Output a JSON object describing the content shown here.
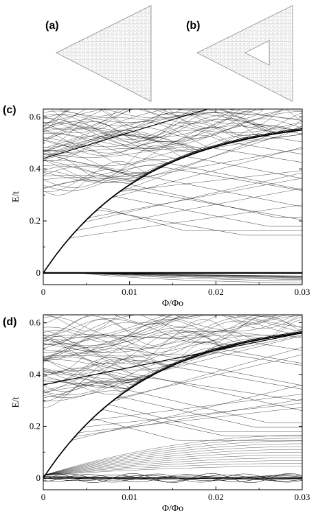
{
  "figure": {
    "panel_labels": {
      "a": "(a)",
      "b": "(b)",
      "c": "(c)",
      "d": "(d)"
    }
  },
  "chart_data": [
    {
      "panel": "(c)",
      "type": "line",
      "xlabel": "Φ/Φo",
      "ylabel": "E/t",
      "xlim": [
        0,
        0.03
      ],
      "ylim": [
        -0.045,
        0.63
      ],
      "x_ticks": [
        0,
        0.01,
        0.02,
        0.03
      ],
      "x_tick_labels": [
        "0",
        "0.01",
        "0.02",
        "0.03"
      ],
      "y_ticks": [
        0,
        0.2,
        0.4,
        0.6
      ],
      "y_tick_labels": [
        "0",
        "0.2",
        "0.4",
        "0.6"
      ],
      "grid": false,
      "zero_mode": "degenerate flat band at E = 0",
      "series_color": "#000000"
    },
    {
      "panel": "(d)",
      "type": "line",
      "xlabel": "Φ/Φo",
      "ylabel": "E/t",
      "xlim": [
        0,
        0.03
      ],
      "ylim": [
        -0.045,
        0.63
      ],
      "x_ticks": [
        0,
        0.01,
        0.02,
        0.03
      ],
      "x_tick_labels": [
        "0",
        "0.01",
        "0.02",
        "0.03"
      ],
      "y_ticks": [
        0,
        0.2,
        0.4,
        0.6
      ],
      "y_tick_labels": [
        "0",
        "0.2",
        "0.4",
        "0.6"
      ],
      "grid": false,
      "zero_mode": "oscillating near-zero states around E = 0",
      "series_color": "#000000"
    }
  ]
}
